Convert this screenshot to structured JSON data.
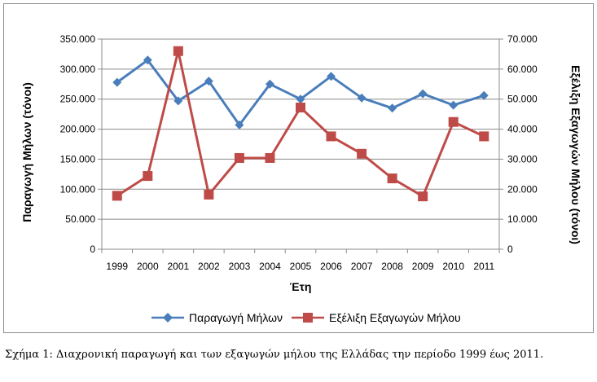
{
  "chart_data": {
    "type": "line",
    "title": "",
    "xlabel": "Έτη",
    "ylabel_left": "Παραγωγή Μήλων (τόνοι)",
    "ylabel_right": "Εξέλιξη Εξαγωγών Μήλου (τόνοι)",
    "ylim_left": [
      0,
      350000
    ],
    "ylim_right": [
      0,
      70000
    ],
    "yticks_left": [
      "0",
      "50.000",
      "100.000",
      "150.000",
      "200.000",
      "250.000",
      "300.000",
      "350.000"
    ],
    "yticks_right": [
      "0",
      "10.000",
      "20.000",
      "30.000",
      "40.000",
      "50.000",
      "60.000",
      "70.000"
    ],
    "grid": true,
    "legend_position": "bottom",
    "categories": [
      "1999",
      "2000",
      "2001",
      "2002",
      "2003",
      "2004",
      "2005",
      "2006",
      "2007",
      "2008",
      "2009",
      "2010",
      "2011"
    ],
    "series": [
      {
        "name": "Παραγωγή Μήλων",
        "axis": "left",
        "marker": "diamond",
        "color": "#4a7ebb",
        "values": [
          278000,
          315000,
          247000,
          280000,
          207000,
          275000,
          250000,
          288000,
          252000,
          235000,
          259000,
          240000,
          256000
        ]
      },
      {
        "name": "Εξέλιξη Εξαγωγών Μήλου",
        "axis": "right",
        "marker": "square",
        "color": "#be4b48",
        "values": [
          17800,
          24400,
          66000,
          18200,
          30400,
          30400,
          47200,
          37600,
          31800,
          23600,
          17600,
          42400,
          37600
        ]
      }
    ]
  },
  "caption": "Σχήμα 1: Διαχρονική παραγωγή και των εξαγωγών μήλου της Ελλάδας την περίοδο 1999 έως 2011."
}
